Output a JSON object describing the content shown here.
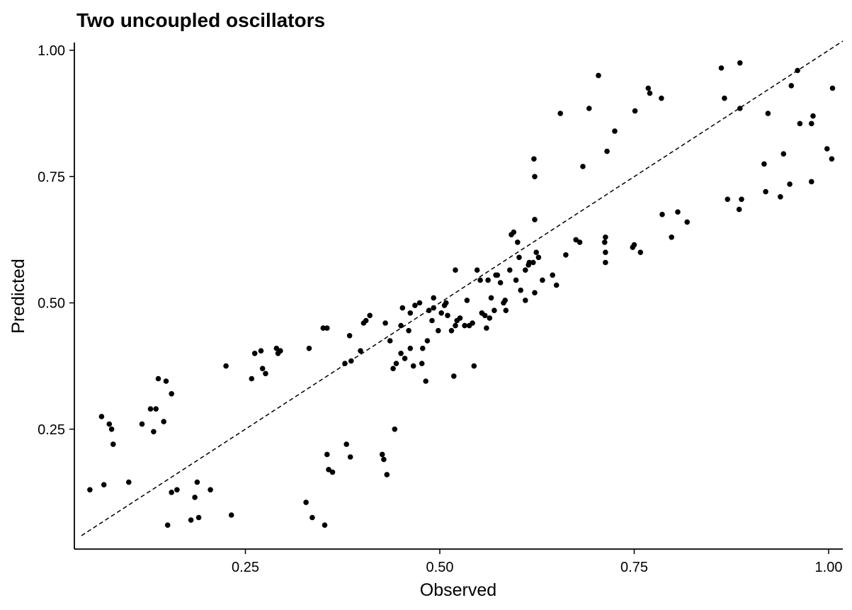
{
  "chart_data": {
    "type": "scatter",
    "title": "Two uncoupled oscillators",
    "xlabel": "Observed",
    "ylabel": "Predicted",
    "xlim": [
      0.0,
      1.0
    ],
    "ylim": [
      0.0,
      1.0
    ],
    "x_ticks": [
      "0.25",
      "0.50",
      "0.75",
      "1.00"
    ],
    "y_ticks": [
      "0.25",
      "0.50",
      "0.75",
      "1.00"
    ],
    "grid": false,
    "reference_line": {
      "type": "identity",
      "style": "dashed",
      "from": [
        0.0,
        0.0
      ],
      "to": [
        1.0,
        1.0
      ]
    },
    "point_color": "#000000",
    "series": [
      {
        "points": [
          [
            0.05,
            0.13
          ],
          [
            0.065,
            0.275
          ],
          [
            0.068,
            0.14
          ],
          [
            0.075,
            0.26
          ],
          [
            0.078,
            0.25
          ],
          [
            0.08,
            0.22
          ],
          [
            0.1,
            0.145
          ],
          [
            0.117,
            0.26
          ],
          [
            0.128,
            0.29
          ],
          [
            0.132,
            0.245
          ],
          [
            0.135,
            0.29
          ],
          [
            0.138,
            0.35
          ],
          [
            0.145,
            0.265
          ],
          [
            0.148,
            0.345
          ],
          [
            0.15,
            0.06
          ],
          [
            0.155,
            0.32
          ],
          [
            0.155,
            0.125
          ],
          [
            0.162,
            0.13
          ],
          [
            0.18,
            0.07
          ],
          [
            0.185,
            0.115
          ],
          [
            0.188,
            0.145
          ],
          [
            0.19,
            0.075
          ],
          [
            0.205,
            0.13
          ],
          [
            0.225,
            0.375
          ],
          [
            0.232,
            0.08
          ],
          [
            0.258,
            0.35
          ],
          [
            0.262,
            0.4
          ],
          [
            0.27,
            0.405
          ],
          [
            0.272,
            0.37
          ],
          [
            0.276,
            0.36
          ],
          [
            0.29,
            0.41
          ],
          [
            0.292,
            0.4
          ],
          [
            0.295,
            0.405
          ],
          [
            0.328,
            0.105
          ],
          [
            0.332,
            0.41
          ],
          [
            0.336,
            0.075
          ],
          [
            0.35,
            0.45
          ],
          [
            0.352,
            0.06
          ],
          [
            0.355,
            0.45
          ],
          [
            0.355,
            0.2
          ],
          [
            0.357,
            0.17
          ],
          [
            0.362,
            0.165
          ],
          [
            0.378,
            0.38
          ],
          [
            0.38,
            0.22
          ],
          [
            0.384,
            0.435
          ],
          [
            0.385,
            0.195
          ],
          [
            0.386,
            0.385
          ],
          [
            0.398,
            0.405
          ],
          [
            0.402,
            0.46
          ],
          [
            0.405,
            0.465
          ],
          [
            0.41,
            0.475
          ],
          [
            0.426,
            0.2
          ],
          [
            0.428,
            0.19
          ],
          [
            0.43,
            0.46
          ],
          [
            0.432,
            0.16
          ],
          [
            0.436,
            0.425
          ],
          [
            0.44,
            0.37
          ],
          [
            0.442,
            0.25
          ],
          [
            0.444,
            0.38
          ],
          [
            0.45,
            0.455
          ],
          [
            0.45,
            0.4
          ],
          [
            0.452,
            0.49
          ],
          [
            0.455,
            0.39
          ],
          [
            0.46,
            0.445
          ],
          [
            0.462,
            0.48
          ],
          [
            0.462,
            0.41
          ],
          [
            0.466,
            0.375
          ],
          [
            0.468,
            0.495
          ],
          [
            0.474,
            0.5
          ],
          [
            0.477,
            0.38
          ],
          [
            0.478,
            0.41
          ],
          [
            0.482,
            0.345
          ],
          [
            0.484,
            0.425
          ],
          [
            0.486,
            0.485
          ],
          [
            0.49,
            0.465
          ],
          [
            0.492,
            0.51
          ],
          [
            0.492,
            0.49
          ],
          [
            0.498,
            0.445
          ],
          [
            0.502,
            0.48
          ],
          [
            0.506,
            0.495
          ],
          [
            0.508,
            0.5
          ],
          [
            0.51,
            0.475
          ],
          [
            0.515,
            0.445
          ],
          [
            0.518,
            0.355
          ],
          [
            0.52,
            0.565
          ],
          [
            0.52,
            0.455
          ],
          [
            0.522,
            0.465
          ],
          [
            0.526,
            0.47
          ],
          [
            0.532,
            0.455
          ],
          [
            0.535,
            0.505
          ],
          [
            0.538,
            0.455
          ],
          [
            0.542,
            0.46
          ],
          [
            0.544,
            0.375
          ],
          [
            0.548,
            0.565
          ],
          [
            0.552,
            0.545
          ],
          [
            0.554,
            0.48
          ],
          [
            0.558,
            0.475
          ],
          [
            0.56,
            0.45
          ],
          [
            0.562,
            0.545
          ],
          [
            0.564,
            0.47
          ],
          [
            0.566,
            0.51
          ],
          [
            0.57,
            0.485
          ],
          [
            0.572,
            0.555
          ],
          [
            0.574,
            0.555
          ],
          [
            0.578,
            0.54
          ],
          [
            0.582,
            0.5
          ],
          [
            0.584,
            0.505
          ],
          [
            0.585,
            0.485
          ],
          [
            0.59,
            0.565
          ],
          [
            0.592,
            0.635
          ],
          [
            0.595,
            0.64
          ],
          [
            0.598,
            0.545
          ],
          [
            0.6,
            0.62
          ],
          [
            0.602,
            0.59
          ],
          [
            0.604,
            0.525
          ],
          [
            0.61,
            0.505
          ],
          [
            0.61,
            0.565
          ],
          [
            0.614,
            0.575
          ],
          [
            0.615,
            0.58
          ],
          [
            0.62,
            0.58
          ],
          [
            0.621,
            0.785
          ],
          [
            0.622,
            0.75
          ],
          [
            0.622,
            0.665
          ],
          [
            0.622,
            0.52
          ],
          [
            0.624,
            0.6
          ],
          [
            0.627,
            0.59
          ],
          [
            0.632,
            0.545
          ],
          [
            0.645,
            0.555
          ],
          [
            0.65,
            0.535
          ],
          [
            0.655,
            0.875
          ],
          [
            0.662,
            0.595
          ],
          [
            0.675,
            0.625
          ],
          [
            0.68,
            0.62
          ],
          [
            0.684,
            0.77
          ],
          [
            0.692,
            0.885
          ],
          [
            0.704,
            0.95
          ],
          [
            0.712,
            0.62
          ],
          [
            0.713,
            0.63
          ],
          [
            0.713,
            0.6
          ],
          [
            0.713,
            0.58
          ],
          [
            0.715,
            0.8
          ],
          [
            0.725,
            0.84
          ],
          [
            0.748,
            0.61
          ],
          [
            0.75,
            0.615
          ],
          [
            0.751,
            0.88
          ],
          [
            0.758,
            0.6
          ],
          [
            0.768,
            0.925
          ],
          [
            0.77,
            0.915
          ],
          [
            0.785,
            0.905
          ],
          [
            0.786,
            0.675
          ],
          [
            0.798,
            0.63
          ],
          [
            0.806,
            0.68
          ],
          [
            0.818,
            0.66
          ],
          [
            0.862,
            0.965
          ],
          [
            0.866,
            0.905
          ],
          [
            0.87,
            0.705
          ],
          [
            0.885,
            0.685
          ],
          [
            0.886,
            0.975
          ],
          [
            0.886,
            0.885
          ],
          [
            0.888,
            0.705
          ],
          [
            0.917,
            0.775
          ],
          [
            0.919,
            0.72
          ],
          [
            0.922,
            0.875
          ],
          [
            0.938,
            0.71
          ],
          [
            0.942,
            0.795
          ],
          [
            0.95,
            0.735
          ],
          [
            0.952,
            0.93
          ],
          [
            0.96,
            0.96
          ],
          [
            0.963,
            0.855
          ],
          [
            0.978,
            0.74
          ],
          [
            0.978,
            0.855
          ],
          [
            0.98,
            0.87
          ],
          [
            0.998,
            0.805
          ],
          [
            1.004,
            0.785
          ],
          [
            1.005,
            0.925
          ]
        ]
      }
    ]
  }
}
